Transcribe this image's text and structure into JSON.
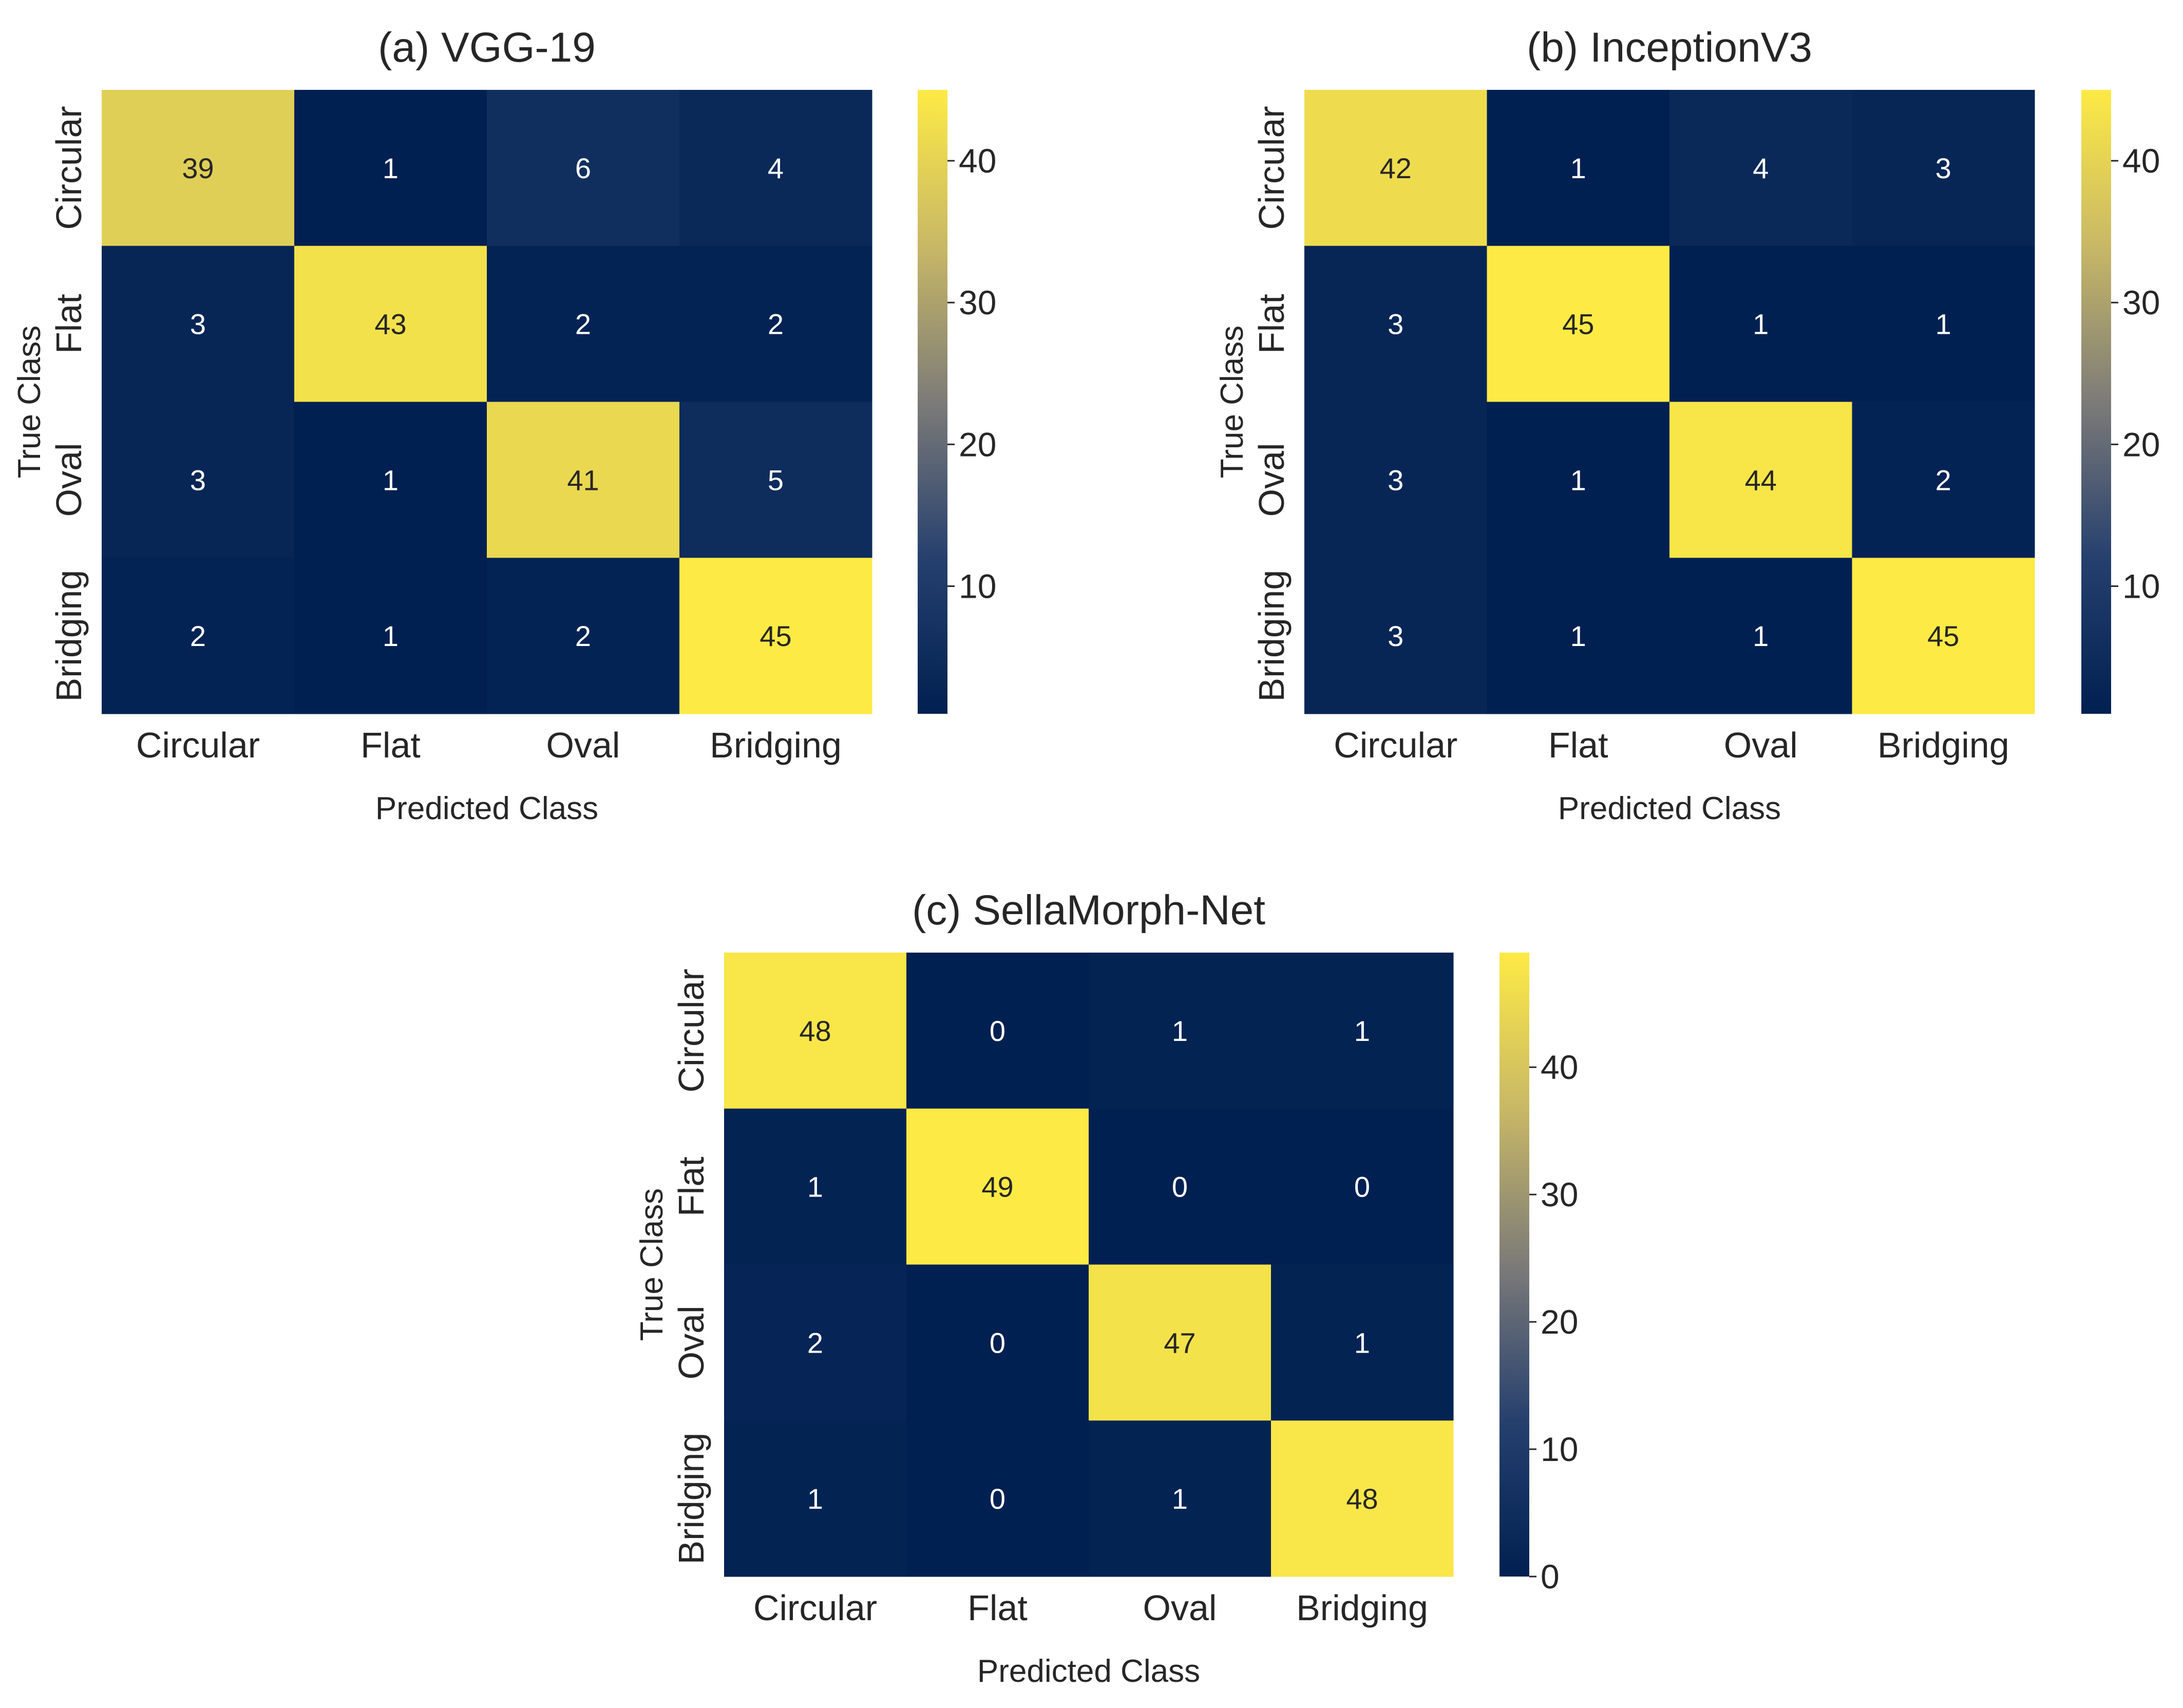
{
  "chart_data": [
    {
      "type": "heatmap",
      "title": "(a) VGG-19",
      "xlabel": "Predicted Class",
      "ylabel": "True Class",
      "x_categories": [
        "Circular",
        "Flat",
        "Oval",
        "Bridging"
      ],
      "y_categories": [
        "Circular",
        "Flat",
        "Oval",
        "Bridging"
      ],
      "matrix": [
        [
          39,
          1,
          6,
          4
        ],
        [
          3,
          43,
          2,
          2
        ],
        [
          3,
          1,
          41,
          5
        ],
        [
          2,
          1,
          2,
          45
        ]
      ],
      "colorbar": {
        "range": [
          1,
          45
        ],
        "ticks": [
          10,
          20,
          30,
          40
        ],
        "colormap": "cividis"
      }
    },
    {
      "type": "heatmap",
      "title": "(b) InceptionV3",
      "xlabel": "Predicted Class",
      "ylabel": "True Class",
      "x_categories": [
        "Circular",
        "Flat",
        "Oval",
        "Bridging"
      ],
      "y_categories": [
        "Circular",
        "Flat",
        "Oval",
        "Bridging"
      ],
      "matrix": [
        [
          42,
          1,
          4,
          3
        ],
        [
          3,
          45,
          1,
          1
        ],
        [
          3,
          1,
          44,
          2
        ],
        [
          3,
          1,
          1,
          45
        ]
      ],
      "colorbar": {
        "range": [
          1,
          45
        ],
        "ticks": [
          10,
          20,
          30,
          40
        ],
        "colormap": "cividis"
      }
    },
    {
      "type": "heatmap",
      "title": "(c) SellaMorph-Net",
      "xlabel": "Predicted Class",
      "ylabel": "True Class",
      "x_categories": [
        "Circular",
        "Flat",
        "Oval",
        "Bridging"
      ],
      "y_categories": [
        "Circular",
        "Flat",
        "Oval",
        "Bridging"
      ],
      "matrix": [
        [
          48,
          0,
          1,
          1
        ],
        [
          1,
          49,
          0,
          0
        ],
        [
          2,
          0,
          47,
          1
        ],
        [
          1,
          0,
          1,
          48
        ]
      ],
      "colorbar": {
        "range": [
          0,
          49
        ],
        "ticks": [
          0,
          10,
          20,
          30,
          40
        ],
        "colormap": "cividis"
      }
    }
  ]
}
